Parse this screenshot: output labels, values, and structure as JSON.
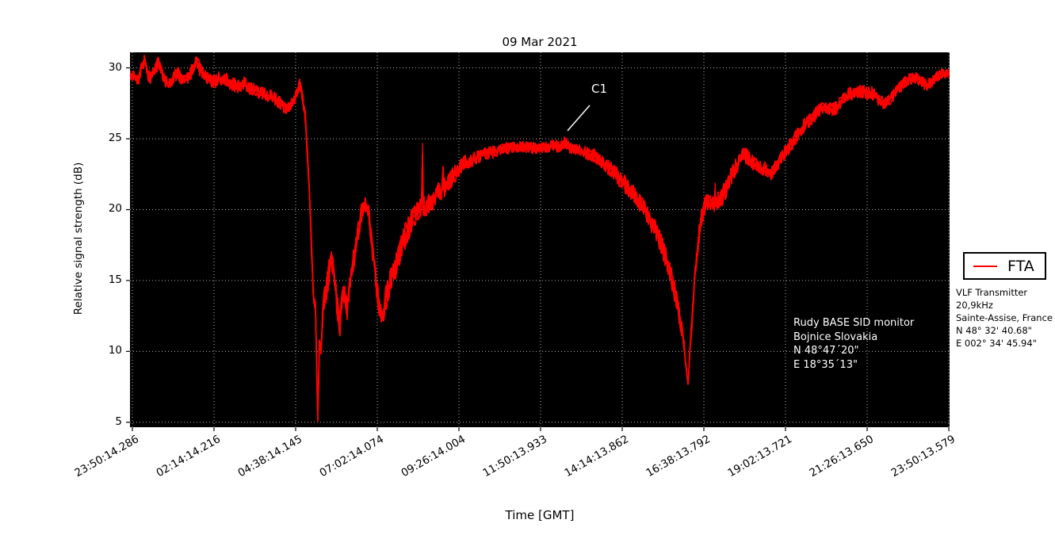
{
  "figure": {
    "title": "09 Mar 2021",
    "xlabel": "Time [GMT]",
    "ylabel": "Relative signal strength (dB)"
  },
  "legend": {
    "series_label": "FTA"
  },
  "transmitter_info": {
    "lines": [
      "VLF Transmitter 20,9kHz",
      "Sainte-Assise, France",
      "N 48° 32' 40.68\"",
      "E 002° 34' 45.94\""
    ]
  },
  "station_info": {
    "lines": [
      "Rudy BASE SID monitor",
      "Bojnice Slovakia",
      "N 48°47´20\"",
      "E 18°35´13\""
    ]
  },
  "annotation": {
    "label": "C1"
  },
  "colors": {
    "background": "#ffffff",
    "plot_background": "#000000",
    "series": "#ff0000",
    "grid": "#b4b4b4",
    "axis_text": "#000000",
    "annotation_text": "#ffffff"
  },
  "chart_data": {
    "type": "line",
    "title": "09 Mar 2021",
    "xlabel": "Time [GMT]",
    "ylabel": "Relative signal strength (dB)",
    "x_tick_labels": [
      "23:50:14.286",
      "02:14:14.216",
      "04:38:14.145",
      "07:02:14.074",
      "09:26:14.004",
      "11:50:13.933",
      "14:14:13.862",
      "16:38:13.792",
      "19:02:13.721",
      "21:26:13.650",
      "23:50:13.579"
    ],
    "x_tick_minutes": [
      0,
      144,
      288,
      432,
      576,
      720,
      864,
      1008,
      1152,
      1296,
      1440
    ],
    "y_ticks": [
      5,
      10,
      15,
      20,
      25,
      30
    ],
    "ylim": [
      4.65,
      31.1
    ],
    "xlim_minutes": [
      -4.2,
      1441.4
    ],
    "grid": true,
    "legend_position": "outside-right",
    "series": [
      {
        "name": "FTA",
        "color": "#ff0000",
        "points_min_db": [
          [
            -4,
            29.6
          ],
          [
            4,
            29.5
          ],
          [
            10,
            29.2
          ],
          [
            15,
            29.8
          ],
          [
            21,
            30.5
          ],
          [
            27,
            29.6
          ],
          [
            32,
            29.3
          ],
          [
            38,
            29.9
          ],
          [
            46,
            30.4
          ],
          [
            55,
            29.4
          ],
          [
            60,
            29.0
          ],
          [
            67,
            28.9
          ],
          [
            74,
            29.4
          ],
          [
            81,
            29.6
          ],
          [
            88,
            29.1
          ],
          [
            95,
            29.2
          ],
          [
            103,
            29.6
          ],
          [
            112,
            30.6
          ],
          [
            120,
            29.8
          ],
          [
            127,
            29.4
          ],
          [
            136,
            29.2
          ],
          [
            144,
            29.0
          ],
          [
            155,
            29.3
          ],
          [
            165,
            29.2
          ],
          [
            175,
            28.9
          ],
          [
            186,
            28.7
          ],
          [
            196,
            28.9
          ],
          [
            207,
            28.6
          ],
          [
            218,
            28.4
          ],
          [
            228,
            28.2
          ],
          [
            238,
            28.1
          ],
          [
            249,
            27.9
          ],
          [
            258,
            27.6
          ],
          [
            266,
            27.3
          ],
          [
            272,
            27.1
          ],
          [
            277,
            27.2
          ],
          [
            285,
            27.7
          ],
          [
            290,
            28.2
          ],
          [
            295,
            28.9
          ],
          [
            300,
            28.0
          ],
          [
            305,
            26.5
          ],
          [
            312,
            21.5
          ],
          [
            319,
            14.0
          ],
          [
            323,
            13.2
          ],
          [
            327,
            5.0
          ],
          [
            330,
            10.8
          ],
          [
            333,
            10.2
          ],
          [
            337,
            13.5
          ],
          [
            344,
            14.8
          ],
          [
            351,
            16.7
          ],
          [
            356,
            15.5
          ],
          [
            359,
            14.0
          ],
          [
            366,
            11.9
          ],
          [
            373,
            14.3
          ],
          [
            379,
            13.0
          ],
          [
            386,
            15.5
          ],
          [
            396,
            17.8
          ],
          [
            404,
            19.8
          ],
          [
            410,
            20.6
          ],
          [
            417,
            19.5
          ],
          [
            424,
            17.0
          ],
          [
            432,
            14.0
          ],
          [
            439,
            12.2
          ],
          [
            446,
            13.5
          ],
          [
            454,
            14.8
          ],
          [
            466,
            16.2
          ],
          [
            480,
            18.0
          ],
          [
            494,
            19.4
          ],
          [
            505,
            20.0
          ],
          [
            510,
            20.2
          ],
          [
            512,
            24.7
          ],
          [
            513,
            20.2
          ],
          [
            521,
            20.3
          ],
          [
            530,
            20.6
          ],
          [
            541,
            21.2
          ],
          [
            547,
            21.4
          ],
          [
            548,
            22.9
          ],
          [
            549,
            21.4
          ],
          [
            556,
            21.8
          ],
          [
            563,
            22.2
          ],
          [
            577,
            23.0
          ],
          [
            591,
            23.4
          ],
          [
            605,
            23.6
          ],
          [
            619,
            23.9
          ],
          [
            633,
            24.0
          ],
          [
            654,
            24.3
          ],
          [
            675,
            24.4
          ],
          [
            696,
            24.4
          ],
          [
            717,
            24.3
          ],
          [
            738,
            24.5
          ],
          [
            745,
            24.6
          ],
          [
            754,
            24.3
          ],
          [
            762,
            24.8
          ],
          [
            767,
            24.5
          ],
          [
            776,
            24.2
          ],
          [
            787,
            24.2
          ],
          [
            801,
            24.0
          ],
          [
            815,
            23.8
          ],
          [
            829,
            23.3
          ],
          [
            843,
            22.9
          ],
          [
            857,
            22.3
          ],
          [
            871,
            21.7
          ],
          [
            885,
            21.0
          ],
          [
            899,
            20.3
          ],
          [
            913,
            19.3
          ],
          [
            927,
            18.2
          ],
          [
            941,
            16.5
          ],
          [
            952,
            15.0
          ],
          [
            962,
            13.2
          ],
          [
            972,
            10.8
          ],
          [
            980,
            7.7
          ],
          [
            986,
            11.5
          ],
          [
            991,
            14.5
          ],
          [
            997,
            17.5
          ],
          [
            1002,
            19.0
          ],
          [
            1008,
            20.2
          ],
          [
            1015,
            20.6
          ],
          [
            1021,
            20.4
          ],
          [
            1027,
            20.5
          ],
          [
            1028,
            21.9
          ],
          [
            1029,
            20.5
          ],
          [
            1036,
            20.7
          ],
          [
            1046,
            21.3
          ],
          [
            1056,
            22.3
          ],
          [
            1067,
            23.2
          ],
          [
            1078,
            23.9
          ],
          [
            1088,
            23.6
          ],
          [
            1095,
            23.3
          ],
          [
            1102,
            23.2
          ],
          [
            1111,
            22.9
          ],
          [
            1120,
            22.8
          ],
          [
            1127,
            22.5
          ],
          [
            1137,
            23.2
          ],
          [
            1148,
            23.9
          ],
          [
            1158,
            24.4
          ],
          [
            1169,
            25.0
          ],
          [
            1179,
            25.6
          ],
          [
            1190,
            26.2
          ],
          [
            1200,
            26.5
          ],
          [
            1211,
            27.0
          ],
          [
            1221,
            27.3
          ],
          [
            1232,
            27.0
          ],
          [
            1241,
            27.2
          ],
          [
            1253,
            27.8
          ],
          [
            1262,
            28.1
          ],
          [
            1274,
            28.3
          ],
          [
            1283,
            28.4
          ],
          [
            1295,
            28.2
          ],
          [
            1304,
            28.2
          ],
          [
            1316,
            27.8
          ],
          [
            1325,
            27.5
          ],
          [
            1335,
            27.7
          ],
          [
            1346,
            28.3
          ],
          [
            1360,
            28.9
          ],
          [
            1371,
            29.2
          ],
          [
            1381,
            29.3
          ],
          [
            1391,
            29.1
          ],
          [
            1399,
            28.8
          ],
          [
            1409,
            29.0
          ],
          [
            1423,
            29.5
          ],
          [
            1433,
            29.6
          ],
          [
            1441,
            29.7
          ]
        ],
        "noise_band_db": [
          [
            -4,
            0.45
          ],
          [
            144,
            0.5
          ],
          [
            260,
            0.45
          ],
          [
            295,
            0.35
          ],
          [
            310,
            0.6
          ],
          [
            322,
            0.4
          ],
          [
            326,
            0.2
          ],
          [
            331,
            0.3
          ],
          [
            340,
            1.0
          ],
          [
            351,
            0.9
          ],
          [
            366,
            0.9
          ],
          [
            386,
            0.8
          ],
          [
            410,
            0.7
          ],
          [
            439,
            0.9
          ],
          [
            466,
            1.0
          ],
          [
            494,
            0.8
          ],
          [
            521,
            0.7
          ],
          [
            549,
            0.8
          ],
          [
            577,
            0.6
          ],
          [
            605,
            0.5
          ],
          [
            633,
            0.45
          ],
          [
            675,
            0.4
          ],
          [
            717,
            0.4
          ],
          [
            762,
            0.4
          ],
          [
            801,
            0.45
          ],
          [
            857,
            0.6
          ],
          [
            913,
            0.7
          ],
          [
            941,
            0.8
          ],
          [
            962,
            0.7
          ],
          [
            976,
            0.35
          ],
          [
            980,
            0.2
          ],
          [
            986,
            0.5
          ],
          [
            997,
            0.8
          ],
          [
            1008,
            0.7
          ],
          [
            1028,
            0.6
          ],
          [
            1046,
            0.7
          ],
          [
            1067,
            0.6
          ],
          [
            1088,
            0.55
          ],
          [
            1111,
            0.5
          ],
          [
            1137,
            0.5
          ],
          [
            1158,
            0.55
          ],
          [
            1179,
            0.5
          ],
          [
            1200,
            0.5
          ],
          [
            1232,
            0.5
          ],
          [
            1262,
            0.45
          ],
          [
            1304,
            0.5
          ],
          [
            1346,
            0.45
          ],
          [
            1381,
            0.4
          ],
          [
            1410,
            0.45
          ],
          [
            1441,
            0.35
          ]
        ]
      }
    ],
    "annotations": [
      {
        "label": "C1",
        "x_minutes": 762,
        "y_db": 24.9
      }
    ]
  }
}
